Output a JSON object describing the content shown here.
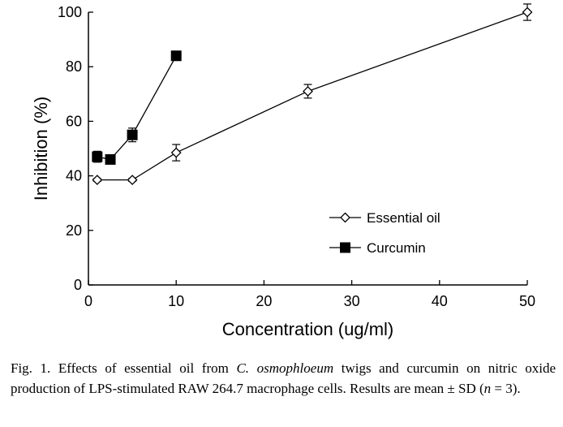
{
  "chart_data": {
    "type": "line",
    "xlabel": "Concentration (ug/ml)",
    "ylabel": "Inhibition (%)",
    "xlim": [
      0,
      50
    ],
    "ylim": [
      0,
      100
    ],
    "xticks": [
      0,
      10,
      20,
      30,
      40,
      50
    ],
    "yticks": [
      0,
      20,
      40,
      60,
      80,
      100
    ],
    "grid": false,
    "legend_position": "lower-right",
    "series": [
      {
        "name": "Essential oil",
        "marker": "diamond-open",
        "x": [
          1,
          5,
          10,
          25,
          50
        ],
        "y": [
          38.5,
          38.5,
          48.5,
          71,
          100
        ],
        "error": [
          0.5,
          0.5,
          3,
          2.5,
          3
        ]
      },
      {
        "name": "Curcumin",
        "marker": "square-filled",
        "x": [
          1,
          2.5,
          5,
          10
        ],
        "y": [
          47,
          46,
          55,
          84
        ],
        "error": [
          2,
          1,
          2.5,
          0.5
        ]
      }
    ]
  },
  "caption": {
    "prefix": "Fig. 1.  Effects of essential oil from ",
    "species": "C. osmophloeum",
    "middle": " twigs and curcumin on nitric oxide production of LPS-stimulated RAW 264.7 macrophage cells. Results are mean ± SD (",
    "n_var": "n",
    "suffix": " = 3)."
  }
}
